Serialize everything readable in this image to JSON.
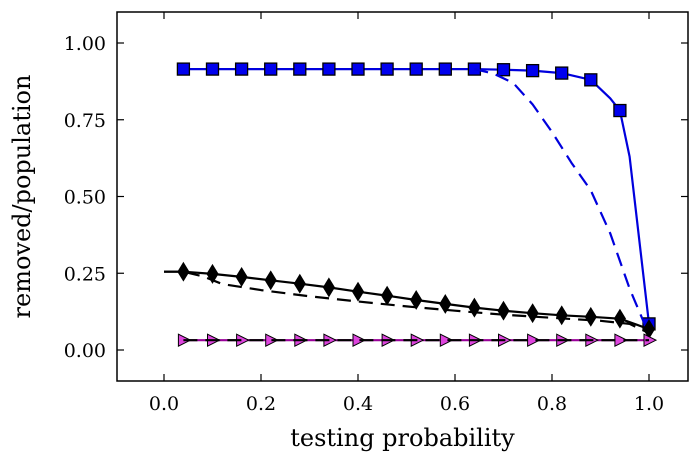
{
  "chart_data": {
    "type": "line",
    "xlabel": "testing probability",
    "ylabel": "removed/population",
    "xlim": [
      -0.1,
      1.08
    ],
    "ylim": [
      -0.1,
      1.1
    ],
    "xticks": [
      0.0,
      0.2,
      0.4,
      0.6,
      0.8,
      1.0
    ],
    "xtick_labels": [
      "0.0",
      "0.2",
      "0.4",
      "0.6",
      "0.8",
      "1.0"
    ],
    "yticks": [
      0.0,
      0.25,
      0.5,
      0.75,
      1.0
    ],
    "ytick_labels": [
      "0.00",
      "0.25",
      "0.50",
      "0.75",
      "1.00"
    ],
    "grid": false,
    "legend": "none",
    "series": [
      {
        "line_color": "#0000dd",
        "marker": "square",
        "marker_color": "#0000ee",
        "line_style": "solid",
        "x": [
          0.04,
          0.1,
          0.16,
          0.22,
          0.28,
          0.34,
          0.4,
          0.46,
          0.52,
          0.58,
          0.64,
          0.7,
          0.76,
          0.82,
          0.88,
          0.92,
          0.94,
          0.96,
          1.0
        ],
        "y": [
          0.915,
          0.915,
          0.915,
          0.915,
          0.915,
          0.915,
          0.915,
          0.915,
          0.915,
          0.915,
          0.915,
          0.913,
          0.91,
          0.902,
          0.88,
          0.82,
          0.78,
          0.63,
          0.085
        ],
        "marker_x": [
          0.04,
          0.1,
          0.16,
          0.22,
          0.28,
          0.34,
          0.4,
          0.46,
          0.52,
          0.58,
          0.64,
          0.7,
          0.76,
          0.82,
          0.88,
          0.94,
          1.0
        ],
        "marker_y": [
          0.915,
          0.915,
          0.915,
          0.915,
          0.915,
          0.915,
          0.915,
          0.915,
          0.915,
          0.915,
          0.915,
          0.913,
          0.91,
          0.902,
          0.88,
          0.78,
          0.085
        ]
      },
      {
        "line_color": "#0000dd",
        "marker": "none",
        "line_style": "dashed",
        "x": [
          0.64,
          0.68,
          0.72,
          0.76,
          0.8,
          0.84,
          0.88,
          0.92,
          0.96,
          1.0
        ],
        "y": [
          0.915,
          0.9,
          0.87,
          0.8,
          0.71,
          0.61,
          0.52,
          0.38,
          0.2,
          0.05
        ]
      },
      {
        "line_color": "#000000",
        "marker": "diamond",
        "marker_color": "#000000",
        "line_style": "solid",
        "x": [
          0.0,
          0.04,
          0.1,
          0.16,
          0.22,
          0.28,
          0.34,
          0.4,
          0.46,
          0.52,
          0.58,
          0.64,
          0.7,
          0.76,
          0.82,
          0.88,
          0.94,
          1.0
        ],
        "y": [
          0.255,
          0.255,
          0.248,
          0.238,
          0.227,
          0.216,
          0.204,
          0.19,
          0.177,
          0.163,
          0.15,
          0.138,
          0.128,
          0.12,
          0.113,
          0.108,
          0.102,
          0.068
        ],
        "marker_x": [
          0.04,
          0.1,
          0.16,
          0.22,
          0.28,
          0.34,
          0.4,
          0.46,
          0.52,
          0.58,
          0.64,
          0.7,
          0.76,
          0.82,
          0.88,
          0.94,
          1.0
        ],
        "marker_y": [
          0.255,
          0.248,
          0.238,
          0.227,
          0.216,
          0.204,
          0.19,
          0.177,
          0.163,
          0.15,
          0.138,
          0.128,
          0.12,
          0.113,
          0.108,
          0.102,
          0.068
        ]
      },
      {
        "line_color": "#000000",
        "marker": "none",
        "line_style": "dashed",
        "x": [
          0.0,
          0.04,
          0.08,
          0.12,
          0.2,
          0.3,
          0.4,
          0.5,
          0.6,
          0.7,
          0.8,
          0.9,
          0.96,
          1.0
        ],
        "y": [
          0.255,
          0.255,
          0.24,
          0.215,
          0.195,
          0.175,
          0.158,
          0.142,
          0.128,
          0.115,
          0.105,
          0.095,
          0.085,
          0.055
        ]
      },
      {
        "line_color": "#990099",
        "marker": "triangle-right",
        "marker_color": "#dd44dd",
        "line_style": "solid",
        "x": [
          0.04,
          0.1,
          0.16,
          0.22,
          0.28,
          0.34,
          0.4,
          0.46,
          0.52,
          0.58,
          0.64,
          0.7,
          0.76,
          0.82,
          0.88,
          0.94,
          1.0
        ],
        "y": [
          0.032,
          0.032,
          0.032,
          0.032,
          0.032,
          0.032,
          0.032,
          0.032,
          0.032,
          0.032,
          0.032,
          0.032,
          0.032,
          0.032,
          0.032,
          0.032,
          0.032
        ],
        "marker_x": [
          0.04,
          0.1,
          0.16,
          0.22,
          0.28,
          0.34,
          0.4,
          0.46,
          0.52,
          0.58,
          0.64,
          0.7,
          0.76,
          0.82,
          0.88,
          0.94,
          1.0
        ],
        "marker_y": [
          0.032,
          0.032,
          0.032,
          0.032,
          0.032,
          0.032,
          0.032,
          0.032,
          0.032,
          0.032,
          0.032,
          0.032,
          0.032,
          0.032,
          0.032,
          0.032,
          0.032
        ]
      },
      {
        "line_color": "#000000",
        "marker": "none",
        "line_style": "dashed",
        "x": [
          0.04,
          1.0
        ],
        "y": [
          0.032,
          0.032
        ]
      }
    ]
  }
}
